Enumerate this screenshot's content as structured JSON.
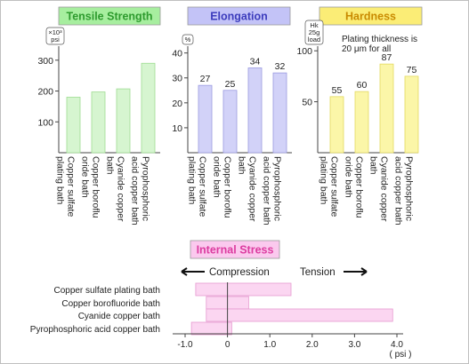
{
  "chart_data": [
    {
      "id": "tensile",
      "type": "bar",
      "title": "Tensile Strength",
      "unit_lines": [
        "×10³",
        "psi"
      ],
      "yticks": [
        100,
        200,
        300
      ],
      "ylim": [
        0,
        380
      ],
      "categories": [
        "Copper sulfate plating bath",
        "Copper borofluoride bath",
        "Cyanide copper bath",
        "Pyrophosphoric acid copper bath"
      ],
      "category_label_lines": [
        [
          "Copper sulfate",
          "plating bath"
        ],
        [
          "Copper boroflu",
          "oride bath"
        ],
        [
          "Cyanide copper",
          "bath"
        ],
        [
          "Pyrophosphoric",
          "acid copper bath"
        ]
      ],
      "values": [
        180,
        197,
        207,
        290
      ],
      "data_labels": [],
      "colors": {
        "bar": "#d6f5d0",
        "bar_edge": "#9edc92",
        "title_bg": "#a7ee9f",
        "title_text": "#2e9b2e"
      }
    },
    {
      "id": "elongation",
      "type": "bar",
      "title": "Elongation",
      "unit_lines": [
        "%"
      ],
      "yticks": [
        10,
        20,
        30,
        40
      ],
      "ylim": [
        0,
        47
      ],
      "categories": [
        "Copper sulfate plating bath",
        "Copper borofluoride bath",
        "Cyanide copper bath",
        "Pyrophosphoric acid copper bath"
      ],
      "category_label_lines": [
        [
          "Copper sulfate",
          "plating bath"
        ],
        [
          "Copper boroflu",
          "oride bath"
        ],
        [
          "Cyanide copper",
          "bath"
        ],
        [
          "Pyrophosphoric",
          "acid copper bath"
        ]
      ],
      "values": [
        27,
        25,
        34,
        32
      ],
      "data_labels": [
        "27",
        "25",
        "34",
        "32"
      ],
      "colors": {
        "bar": "#d2d2f8",
        "bar_edge": "#9a9ae0",
        "title_bg": "#c3c3f7",
        "title_text": "#3d3dbd"
      }
    },
    {
      "id": "hardness",
      "type": "bar",
      "title": "Hardness",
      "unit_lines": [
        "Hk",
        "25g",
        "load"
      ],
      "yticks": [
        50,
        100
      ],
      "ylim": [
        0,
        115
      ],
      "annotation_lines": [
        "Plating thickness is",
        "20 μm for all"
      ],
      "categories": [
        "Copper sulfate plating bath",
        "Copper borofluoride bath",
        "Cyanide copper bath",
        "Pyrophosphoric acid copper bath"
      ],
      "category_label_lines": [
        [
          "Copper sulfate",
          "plating bath"
        ],
        [
          "Copper boroflu",
          "oride bath"
        ],
        [
          "Cyanide copper",
          "bath"
        ],
        [
          "Pyrophosphoric",
          "acid copper bath"
        ]
      ],
      "values": [
        55,
        60,
        87,
        75
      ],
      "data_labels": [
        "55",
        "60",
        "87",
        "75"
      ],
      "colors": {
        "bar": "#fbf6a8",
        "bar_edge": "#e3d960",
        "title_bg": "#fbed76",
        "title_text": "#c98a00"
      }
    },
    {
      "id": "internal-stress",
      "type": "bar",
      "orientation": "horizontal",
      "title": "Internal Stress",
      "left_label": "Compression",
      "right_label": "Tension",
      "unit": "( psi )",
      "xticks": [
        -1.0,
        0,
        1.0,
        2.0,
        3.0,
        4.0
      ],
      "xtick_labels": [
        "-1.0",
        "0",
        "1.0",
        "2.0",
        "3.0",
        "4.0"
      ],
      "xlim": [
        -1.0,
        4.0
      ],
      "categories": [
        "Copper sulfate plating bath",
        "Copper borofluoride bath",
        "Cyanide copper bath",
        "Pyrophosphoric acid copper bath"
      ],
      "ranges": [
        [
          -0.75,
          1.5
        ],
        [
          -0.5,
          0.5
        ],
        [
          -0.5,
          3.9
        ],
        [
          -0.85,
          0.1
        ]
      ],
      "colors": {
        "bar": "#fbd6f1",
        "bar_edge": "#e79ad0",
        "title_bg": "#fbc9ee",
        "title_text": "#dc3ca0"
      }
    }
  ]
}
